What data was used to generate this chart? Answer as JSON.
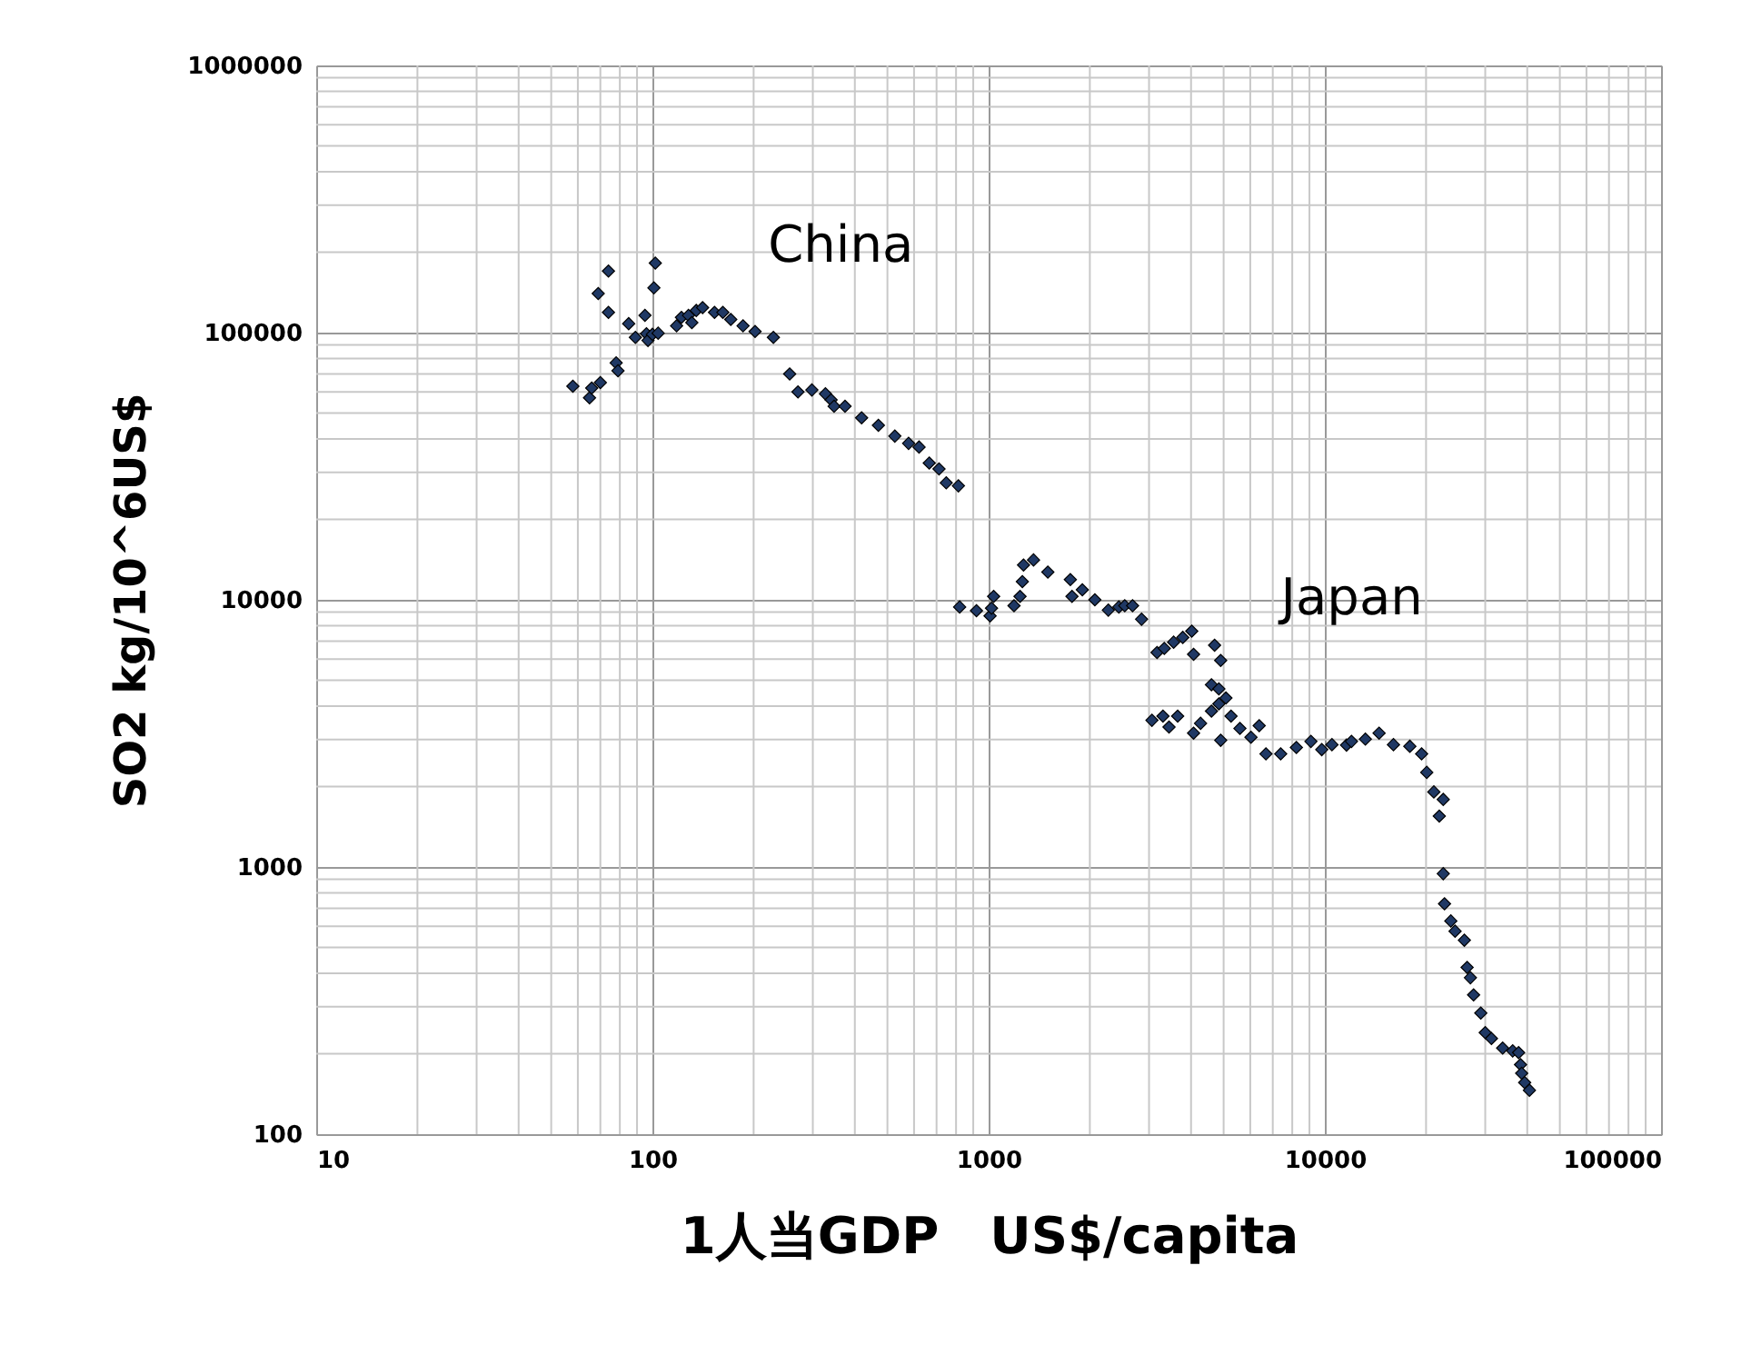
{
  "chart_data": {
    "type": "scatter",
    "xlabel": "1人当GDP　US$/capita",
    "ylabel": "SO2 kg/10^6US$",
    "log": "xy",
    "grid": true,
    "marker": "diamond",
    "xlim": [
      10,
      100000
    ],
    "ylim": [
      100,
      1000000
    ],
    "xticks": [
      10,
      100,
      1000,
      10000,
      100000
    ],
    "yticks": [
      100,
      1000,
      10000,
      100000,
      1000000
    ],
    "annotations": [
      "China",
      "Japan"
    ],
    "series": [
      {
        "color": "#1f3864",
        "x": [
          58,
          65,
          66,
          70,
          69,
          74,
          74,
          78,
          79,
          85,
          89,
          95,
          96,
          97,
          100,
          101,
          102,
          104,
          118,
          122,
          128,
          131,
          135,
          141,
          153,
          162,
          171,
          186,
          202,
          229,
          256,
          271,
          298,
          327,
          340,
          347,
          374,
          419,
          470,
          526,
          578,
          621,
          666,
          712,
          748,
          813,
          820,
          920,
          1010,
          1020,
          1035,
          1190,
          1240,
          1260,
          1270,
          1360,
          1500,
          1750,
          1770,
          1900,
          2070,
          2270,
          2440,
          2540,
          2680,
          2850,
          3170,
          3330,
          3550,
          3780,
          4020,
          4070,
          4700,
          4900,
          3060,
          3300,
          3440,
          3650,
          4070,
          4270,
          4600,
          4840,
          4600,
          4840,
          5080,
          5260,
          5590,
          4900,
          6030,
          6380,
          6680,
          7390,
          8230,
          9090,
          9790,
          10500,
          11600,
          12000,
          13200,
          14500,
          16000,
          17900,
          19400,
          20100,
          21100,
          22500,
          21900,
          22500,
          22700,
          23700,
          24400,
          26000,
          26500,
          27100,
          27700,
          29100,
          30000,
          31300,
          33800,
          36200,
          37700,
          38200,
          38500,
          39300,
          40600
        ],
        "values": [
          63000,
          57000,
          62000,
          65000,
          140000,
          170000,
          119000,
          77000,
          72000,
          108000,
          96000,
          116000,
          99000,
          93500,
          98500,
          147000,
          182000,
          99500,
          106000,
          114000,
          116000,
          109000,
          121000,
          124000,
          119000,
          119000,
          112000,
          106000,
          101000,
          96000,
          70000,
          60000,
          61000,
          59000,
          56000,
          53000,
          53000,
          48000,
          45000,
          41000,
          38500,
          37300,
          32500,
          30900,
          27400,
          26700,
          9400,
          9100,
          8700,
          9300,
          10300,
          9500,
          10300,
          11700,
          13500,
          14100,
          12700,
          11900,
          10300,
          10900,
          10000,
          9150,
          9400,
          9500,
          9500,
          8460,
          6350,
          6580,
          6940,
          7230,
          7630,
          6250,
          6760,
          5930,
          3540,
          3670,
          3340,
          3670,
          3170,
          3450,
          4810,
          4640,
          3830,
          4080,
          4290,
          3670,
          3300,
          2980,
          3060,
          3380,
          2650,
          2650,
          2800,
          2950,
          2750,
          2870,
          2860,
          2950,
          3010,
          3170,
          2870,
          2830,
          2650,
          2260,
          1910,
          1790,
          1550,
          944,
          728,
          628,
          575,
          532,
          421,
          385,
          332,
          284,
          240,
          228,
          210,
          205,
          202,
          182,
          169,
          156,
          146
        ]
      }
    ]
  }
}
